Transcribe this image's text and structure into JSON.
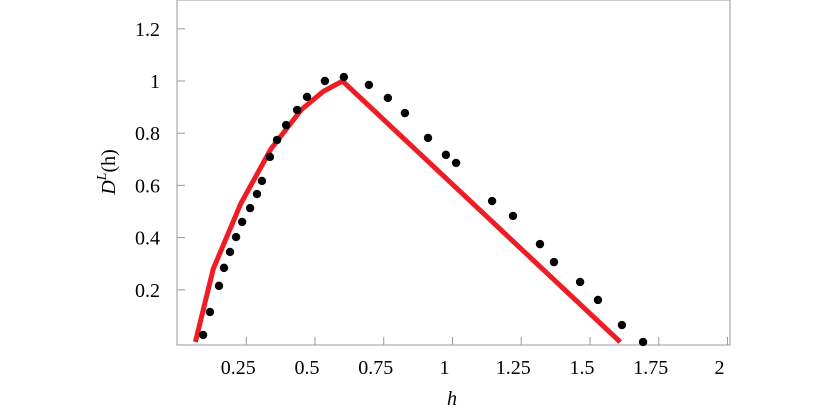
{
  "chart_data": {
    "type": "scatter_line",
    "x_label": "h",
    "y_label": {
      "base": "D",
      "sup": "L",
      "rest": "(h)"
    },
    "xlim": [
      0,
      2
    ],
    "ylim": [
      0,
      1.3
    ],
    "xticks": [
      0.25,
      0.5,
      0.75,
      1,
      1.25,
      1.5,
      1.75,
      2
    ],
    "yticks": [
      0.2,
      0.4,
      0.6,
      0.8,
      1,
      1.2
    ],
    "series": [
      {
        "kind": "line",
        "color": "#ee1c25",
        "x": [
          0.065,
          0.13,
          0.23,
          0.34,
          0.45,
          0.53,
          0.6,
          1.61
        ],
        "values": [
          0,
          0.28,
          0.53,
          0.74,
          0.89,
          0.96,
          1.0,
          0
        ]
      },
      {
        "kind": "points",
        "color": "#000000",
        "x": [
          0.093,
          0.118,
          0.151,
          0.169,
          0.191,
          0.213,
          0.235,
          0.264,
          0.289,
          0.307,
          0.336,
          0.362,
          0.395,
          0.435,
          0.471,
          0.536,
          0.605,
          0.696,
          0.765,
          0.827,
          0.911,
          0.976,
          1.013,
          1.144,
          1.22,
          1.318,
          1.369,
          1.464,
          1.529,
          1.616,
          1.693
        ],
        "values": [
          0.027,
          0.115,
          0.215,
          0.284,
          0.345,
          0.402,
          0.46,
          0.513,
          0.567,
          0.617,
          0.709,
          0.774,
          0.831,
          0.889,
          0.939,
          1.0,
          1.015,
          0.985,
          0.935,
          0.877,
          0.782,
          0.717,
          0.686,
          0.54,
          0.483,
          0.375,
          0.306,
          0.23,
          0.161,
          0.065,
          0.0
        ]
      }
    ]
  }
}
